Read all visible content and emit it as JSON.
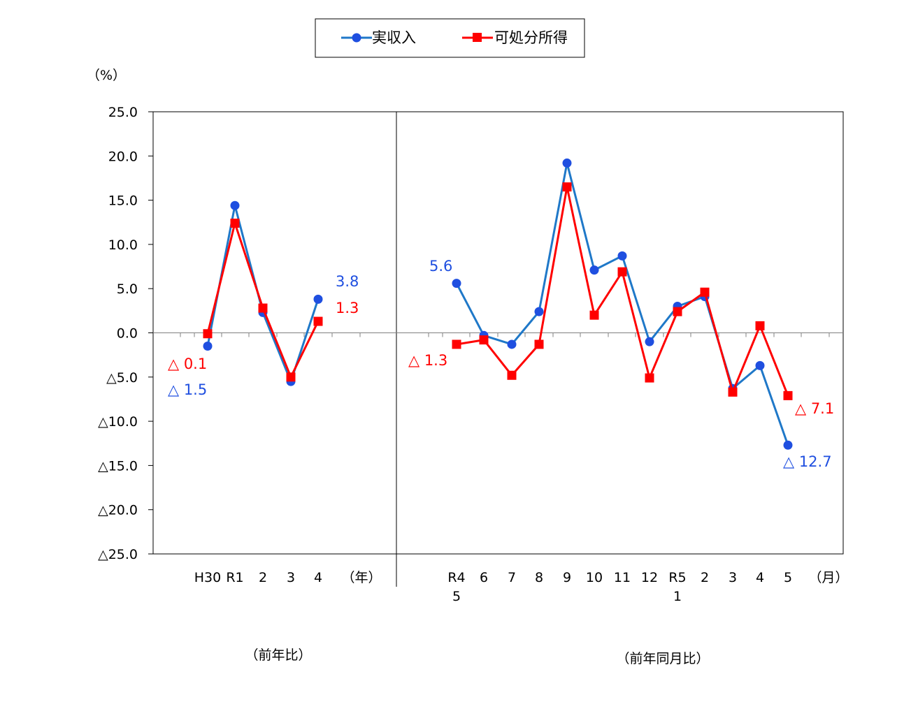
{
  "chart_data": {
    "type": "line",
    "y_unit_label": "（%）",
    "ylim": [
      -25,
      25
    ],
    "y_tick_labels": [
      "25.0",
      "20.0",
      "15.0",
      "10.0",
      "5.0",
      "0.0",
      "△5.0",
      "△10.0",
      "△15.0",
      "△20.0",
      "△25.0"
    ],
    "y_ticks": [
      25,
      20,
      15,
      10,
      5,
      0,
      -5,
      -10,
      -15,
      -20,
      -25
    ],
    "legend": {
      "placement": "top-center",
      "entries": [
        "実収入",
        "可処分所得"
      ]
    },
    "colors": {
      "実収入": "#1f4fe0",
      "可処分所得": "#ff0000",
      "実収入_line": "#1f78c8"
    },
    "annual": {
      "categories": [
        "H30",
        "R1",
        "2",
        "3",
        "4"
      ],
      "unit_label": "（年）",
      "group_label": "（前年比）",
      "series": [
        {
          "name": "実収入",
          "values": [
            -1.5,
            14.4,
            2.3,
            -5.5,
            3.8
          ]
        },
        {
          "name": "可処分所得",
          "values": [
            -0.1,
            12.4,
            2.8,
            -5.0,
            1.3
          ]
        }
      ]
    },
    "monthly": {
      "categories": [
        "R4",
        "6",
        "7",
        "8",
        "9",
        "10",
        "11",
        "12",
        "R5",
        "2",
        "3",
        "4",
        "5"
      ],
      "sub_labels": [
        "5",
        "",
        "",
        "",
        "",
        "",
        "",
        "",
        "1",
        "",
        "",
        "",
        ""
      ],
      "unit_label": "（月）",
      "group_label": "（前年同月比）",
      "series": [
        {
          "name": "実収入",
          "values": [
            5.6,
            -0.3,
            -1.3,
            2.4,
            19.2,
            7.1,
            8.7,
            -1.0,
            3.0,
            4.1,
            -6.3,
            -3.7,
            -12.7
          ]
        },
        {
          "name": "可処分所得",
          "values": [
            -1.3,
            -0.8,
            -4.8,
            -1.3,
            16.5,
            2.0,
            6.9,
            -5.1,
            2.4,
            4.6,
            -6.7,
            0.8,
            -7.1
          ]
        }
      ]
    },
    "annotations": [
      {
        "text": "△ 0.1",
        "series": "可処分所得"
      },
      {
        "text": "△ 1.5",
        "series": "実収入"
      },
      {
        "text": "3.8",
        "series": "実収入"
      },
      {
        "text": "1.3",
        "series": "可処分所得"
      },
      {
        "text": "5.6",
        "series": "実収入"
      },
      {
        "text": "△ 1.3",
        "series": "可処分所得"
      },
      {
        "text": "△ 7.1",
        "series": "可処分所得"
      },
      {
        "text": "△ 12.7",
        "series": "実収入"
      }
    ],
    "grid": false
  }
}
